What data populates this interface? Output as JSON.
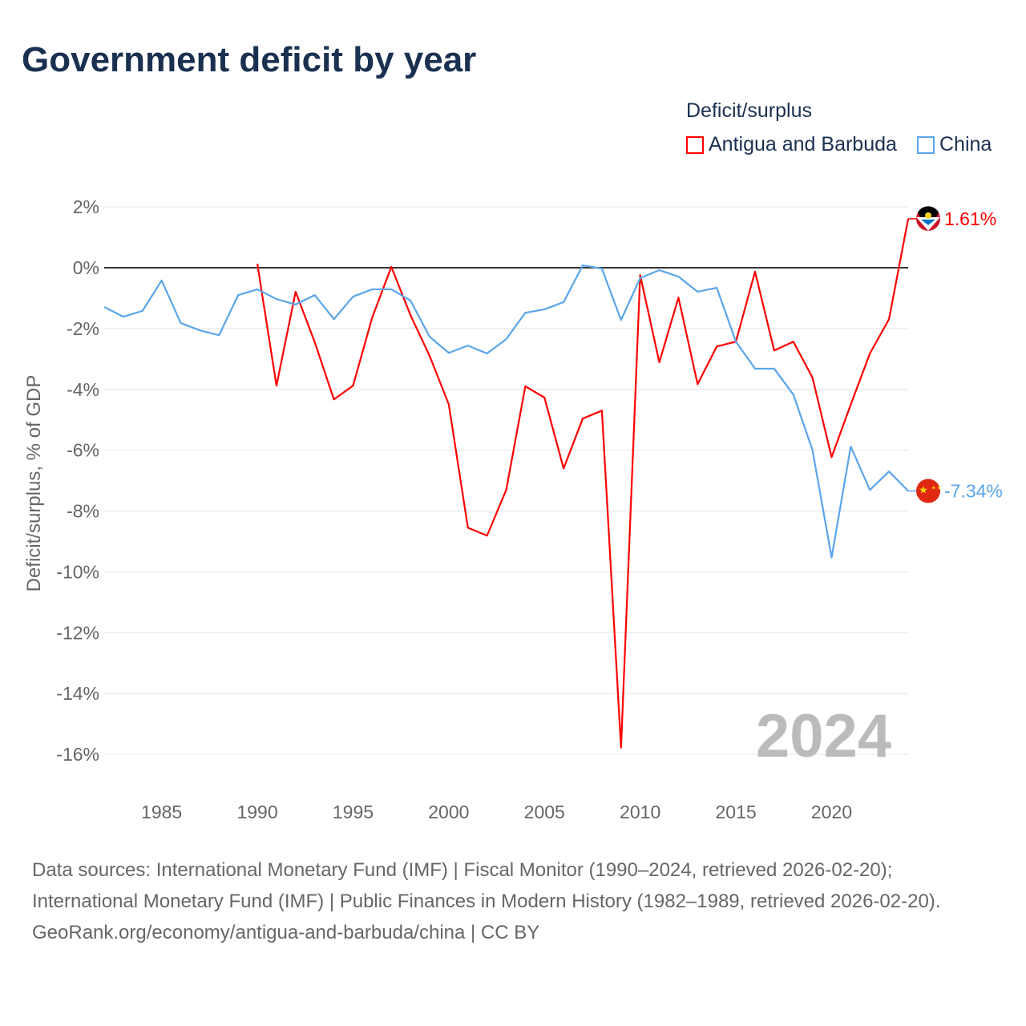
{
  "title": "Government deficit by year",
  "legend": {
    "title": "Deficit/surplus",
    "items": [
      "Antigua and Barbuda",
      "China"
    ]
  },
  "colors": {
    "antigua": "#ff0000",
    "china": "#5aa5ea"
  },
  "year_watermark": "2024",
  "footer": {
    "line1": "Data sources: International Monetary Fund (IMF) | Fiscal Monitor (1990–2024, retrieved 2026-02-20); International Monetary Fund (IMF) | Public Finances in Modern History (1982–1989, retrieved 2026-02-20).",
    "line2": "GeoRank.org/economy/antigua-and-barbuda/china | CC BY"
  },
  "chart_data": {
    "type": "line",
    "title": "Government deficit by year",
    "xlabel": "",
    "ylabel": "Deficit/surplus, % of GDP",
    "xlim": [
      1982,
      2024
    ],
    "ylim": [
      -16,
      2
    ],
    "yticks": [
      2,
      0,
      -2,
      -4,
      -6,
      -8,
      -10,
      -12,
      -14,
      -16
    ],
    "ytick_labels": [
      "2%",
      "0%",
      "-2%",
      "-4%",
      "-6%",
      "-8%",
      "-10%",
      "-12%",
      "-14%",
      "-16%"
    ],
    "xticks": [
      1985,
      1990,
      1995,
      2000,
      2005,
      2010,
      2015,
      2020
    ],
    "xtick_labels": [
      "1985",
      "1990",
      "1995",
      "2000",
      "2005",
      "2010",
      "2015",
      "2020"
    ],
    "series": [
      {
        "name": "Antigua and Barbuda",
        "color": "#ff0000",
        "end_label": "1.61%",
        "start_year": 1990,
        "values": [
          0.13,
          -3.88,
          -0.79,
          -2.45,
          -4.33,
          -3.88,
          -1.64,
          0.03,
          -1.56,
          -2.9,
          -4.49,
          -8.55,
          -8.81,
          -7.31,
          -3.9,
          -4.27,
          -6.6,
          -4.96,
          -4.7,
          -15.78,
          -0.24,
          -3.11,
          -0.98,
          -3.83,
          -2.59,
          -2.43,
          -0.13,
          -2.72,
          -2.43,
          -3.61,
          -6.23,
          -4.5,
          -2.82,
          -1.69,
          1.61
        ]
      },
      {
        "name": "China",
        "color": "#5aa5ea",
        "end_label": "-7.34%",
        "start_year": 1982,
        "values": [
          -1.29,
          -1.61,
          -1.42,
          -0.42,
          -1.82,
          -2.06,
          -2.22,
          -0.9,
          -0.71,
          -1.03,
          -1.21,
          -0.9,
          -1.69,
          -0.95,
          -0.71,
          -0.71,
          -1.08,
          -2.27,
          -2.8,
          -2.56,
          -2.82,
          -2.35,
          -1.48,
          -1.37,
          -1.13,
          0.08,
          -0.03,
          -1.72,
          -0.34,
          -0.08,
          -0.29,
          -0.79,
          -0.66,
          -2.43,
          -3.32,
          -3.32,
          -4.17,
          -5.99,
          -9.53,
          -5.88,
          -7.31,
          -6.7,
          -7.34
        ]
      }
    ],
    "grid": true,
    "legend_position": "top-right"
  }
}
